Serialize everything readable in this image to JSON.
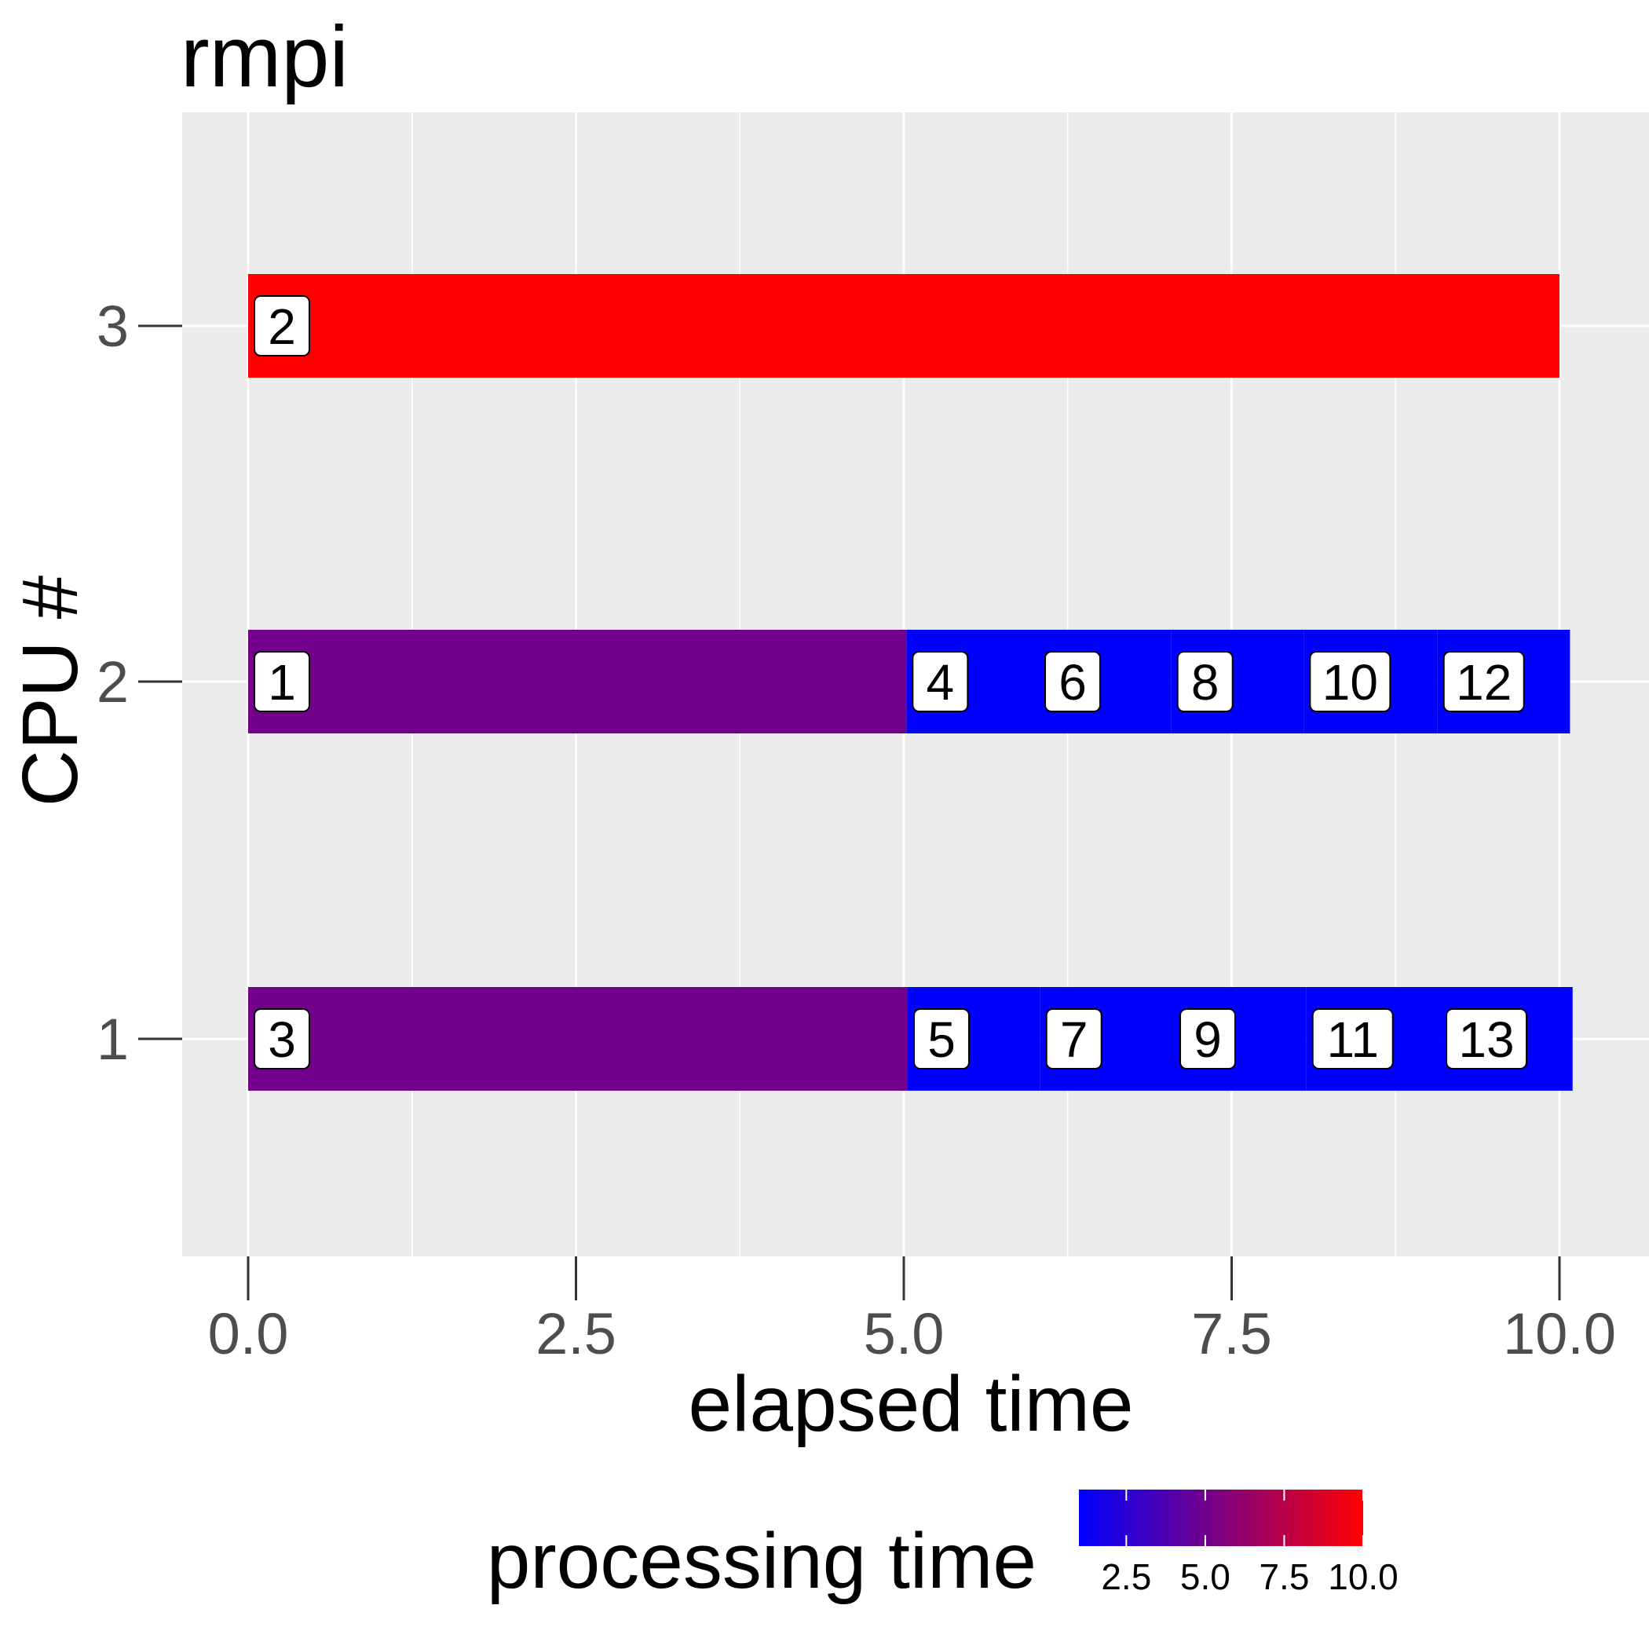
{
  "chart_data": {
    "type": "bar",
    "orientation": "horizontal",
    "title": "rmpi",
    "xlabel": "elapsed time",
    "ylabel": "CPU #",
    "xlim": [
      -0.5,
      10.6
    ],
    "x_ticks": [
      "0.0",
      "2.5",
      "5.0",
      "7.5",
      "10.0"
    ],
    "x_tick_values": [
      0,
      2.5,
      5,
      7.5,
      10
    ],
    "categories": [
      "1",
      "2",
      "3"
    ],
    "grid": true,
    "tasks": [
      {
        "cpu": "3",
        "label": "2",
        "start": 0.0,
        "end": 10.0,
        "processing_time": 10.0
      },
      {
        "cpu": "2",
        "label": "1",
        "start": 0.0,
        "end": 5.02,
        "processing_time": 5.02
      },
      {
        "cpu": "2",
        "label": "4",
        "start": 5.02,
        "end": 6.03,
        "processing_time": 1.01
      },
      {
        "cpu": "2",
        "label": "6",
        "start": 6.03,
        "end": 7.04,
        "processing_time": 1.01
      },
      {
        "cpu": "2",
        "label": "8",
        "start": 7.04,
        "end": 8.05,
        "processing_time": 1.01
      },
      {
        "cpu": "2",
        "label": "10",
        "start": 8.05,
        "end": 9.07,
        "processing_time": 1.02
      },
      {
        "cpu": "2",
        "label": "12",
        "start": 9.07,
        "end": 10.08,
        "processing_time": 1.01
      },
      {
        "cpu": "1",
        "label": "3",
        "start": 0.0,
        "end": 5.03,
        "processing_time": 5.03
      },
      {
        "cpu": "1",
        "label": "5",
        "start": 5.03,
        "end": 6.04,
        "processing_time": 1.01
      },
      {
        "cpu": "1",
        "label": "7",
        "start": 6.04,
        "end": 7.06,
        "processing_time": 1.02
      },
      {
        "cpu": "1",
        "label": "9",
        "start": 7.06,
        "end": 8.07,
        "processing_time": 1.01
      },
      {
        "cpu": "1",
        "label": "11",
        "start": 8.07,
        "end": 9.09,
        "processing_time": 1.02
      },
      {
        "cpu": "1",
        "label": "13",
        "start": 9.09,
        "end": 10.1,
        "processing_time": 1.01
      }
    ],
    "legend": {
      "title": "processing time",
      "placement": "bottom",
      "type": "colorbar",
      "range": [
        1.0,
        10.0
      ],
      "low_color": "#0000ff",
      "high_color": "#ff0000",
      "ticks": [
        "2.5",
        "5.0",
        "7.5",
        "10.0"
      ],
      "tick_values": [
        2.5,
        5.0,
        7.5,
        10.0
      ]
    },
    "colors": {
      "panel_background": "#ebebeb",
      "grid": "#ffffff",
      "tick_text": "#4d4d4d"
    }
  }
}
